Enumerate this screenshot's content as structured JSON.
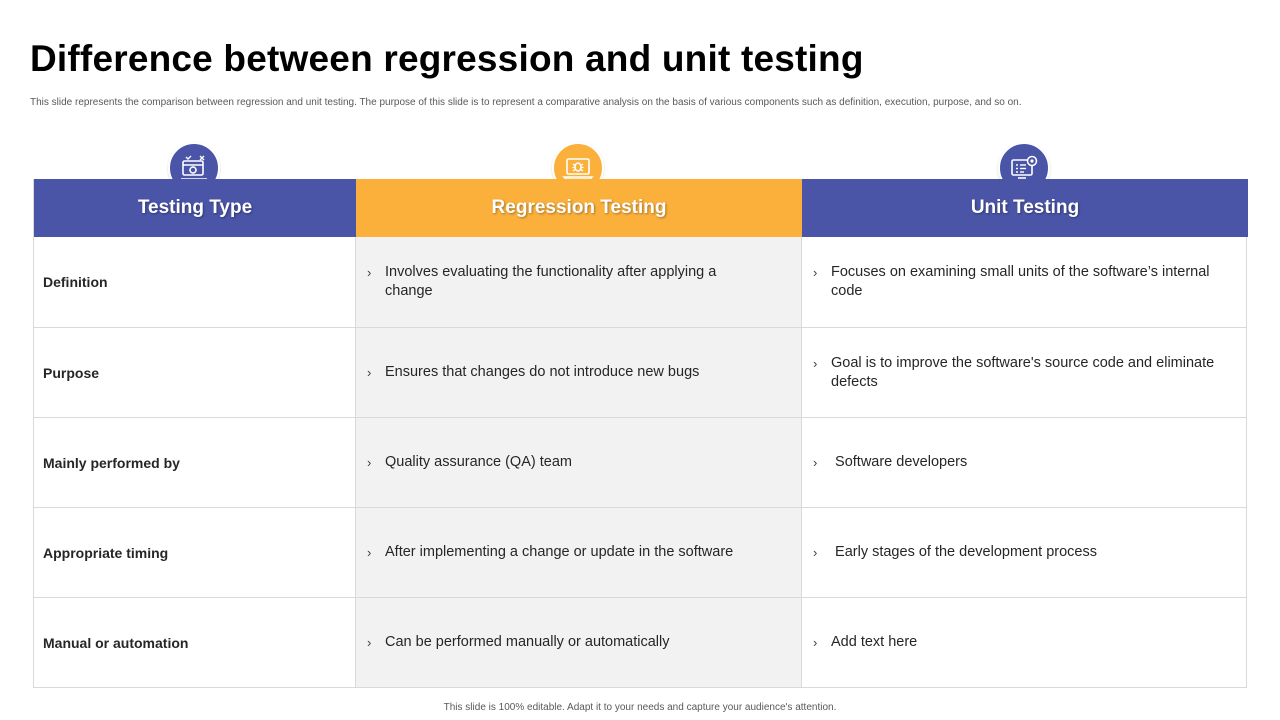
{
  "title": "Difference between regression and unit testing",
  "subtitle": "This slide represents the comparison between regression and unit testing. The purpose of this slide is to represent a comparative analysis on the basis of various components such as definition, execution, purpose, and so on.",
  "table": {
    "headers": [
      "Testing Type",
      "Regression Testing",
      "Unit Testing"
    ],
    "header_colors": [
      "#4a55a8",
      "#fbb03b",
      "#4a55a8"
    ],
    "header_icons": [
      "testing-tools-icon",
      "laptop-bug-icon",
      "code-target-icon"
    ],
    "rows": [
      {
        "label": "Definition",
        "regression": "Involves evaluating the functionality after applying a change",
        "unit": "Focuses on examining small units of the software’s internal code"
      },
      {
        "label": "Purpose",
        "regression": "Ensures that changes do not introduce new bugs",
        "unit": "Goal is to improve the software's source code and eliminate defects"
      },
      {
        "label": "Mainly performed by",
        "regression": "Quality assurance (QA) team",
        "unit": " Software developers"
      },
      {
        "label": "Appropriate timing",
        "regression": "After implementing a change or update in the software",
        "unit": " Early stages of the development process"
      },
      {
        "label": "Manual or automation",
        "regression": "Can be performed manually or automatically",
        "unit": "Add text here"
      }
    ]
  },
  "footer": "This slide is 100% editable. Adapt it to your needs and capture your audience's attention."
}
